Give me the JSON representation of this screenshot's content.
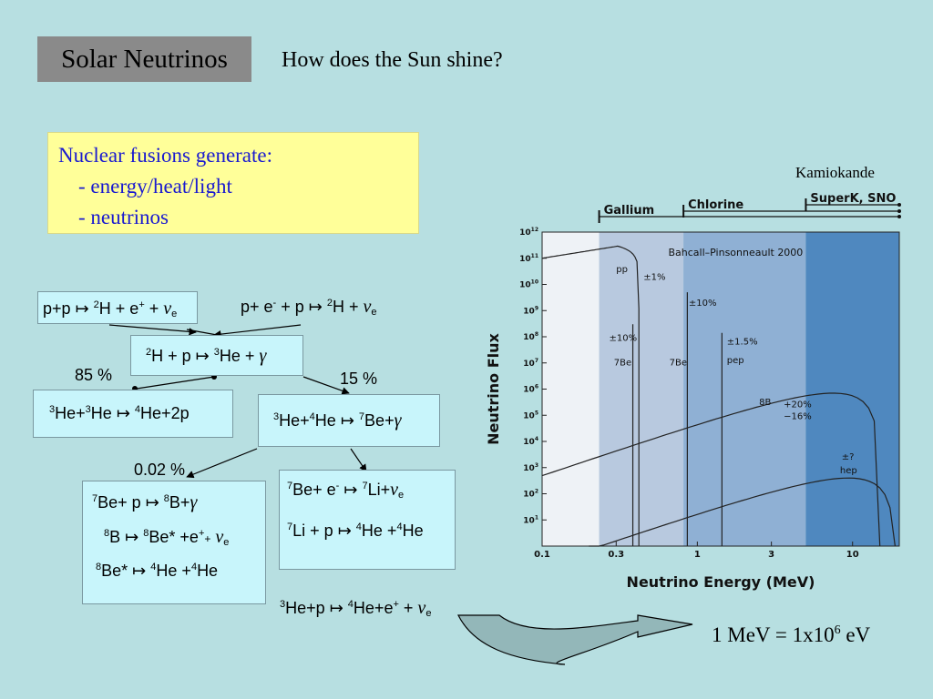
{
  "slide": {
    "title": "Solar Neutrinos",
    "subtitle": "How does the Sun shine?",
    "fusion_heading": "Nuclear fusions generate:",
    "fusion_items": [
      "- energy/heat/light",
      "- neutrinos"
    ],
    "energy_note_prefix": "1 MeV = 1x10",
    "energy_note_exp": "6",
    "energy_note_suffix": " eV"
  },
  "reactions": {
    "pp_a": "p+p",
    "pp_b": "H + e",
    "pep_a": "p+ e",
    "pep_b": " + p",
    "pep_c": "H +",
    "d_p_a": "H + p",
    "d_p_b": "He +",
    "he3he3_a": "He+",
    "he3he3_b": "He",
    "he3he3_c": "He+2p",
    "he3he4_a": "He+",
    "he3he4_b": "He",
    "he3he4_c": "Be+",
    "be7e_a": "Be+  e",
    "be7e_b": "Li+",
    "li7p_a": "Li + p",
    "li7p_b": "He +",
    "li7p_c": "He",
    "be7p_a": "Be+  p",
    "be7p_b": "B+",
    "b8_a": "B",
    "b8_b": "Be* +e",
    "be8_a": "Be*",
    "be8_b": "He +",
    "be8_c": "He",
    "hep_a": "He+p",
    "hep_b": "He+e",
    "branch_85": "85 %",
    "branch_15": "15 %",
    "branch_002": "0.02 %",
    "arrow_sym": "↦",
    "nu_sym": "ν",
    "gamma_sym": "γ",
    "e_sub": "e",
    "plus": "+",
    "minus": "-",
    "num_2": "2",
    "num_3": "3",
    "num_4": "4",
    "num_7": "7",
    "num_8": "8"
  },
  "chart_data": {
    "type": "line",
    "xlabel": "Neutrino Energy (MeV)",
    "ylabel": "Neutrino Flux",
    "x_scale": "log",
    "y_scale": "log",
    "xlim": [
      0.1,
      20
    ],
    "ylim": [
      1,
      1000000000000.0
    ],
    "x_ticks": [
      "0.1",
      "0.3",
      "1",
      "3",
      "10"
    ],
    "y_ticks": [
      "10^12",
      "10^11",
      "10^10",
      "10^9",
      "10^8",
      "10^7",
      "10^6",
      "10^5",
      "10^4",
      "10^3",
      "10^2",
      "10^1"
    ],
    "model_label": "Bahcall–Pinsonneault 2000",
    "detector_ranges": [
      {
        "name": "Gallium",
        "threshold_mev": 0.233
      },
      {
        "name": "Chlorine",
        "threshold_mev": 0.814
      },
      {
        "name": "SuperK, SNO",
        "threshold_mev": 5.0
      }
    ],
    "kamiokande_label": "Kamiokande",
    "series": [
      {
        "name": "pp",
        "uncertainty": "±1%",
        "type": "continuum",
        "endpoint_mev": 0.42,
        "peak_flux": 300000000000.0
      },
      {
        "name": "7Be",
        "uncertainty": "±10%",
        "type": "line",
        "energy_mev": 0.384,
        "flux": 300000000.0
      },
      {
        "name": "7Be",
        "uncertainty": "",
        "type": "line",
        "energy_mev": 0.862,
        "flux": 5000000000.0
      },
      {
        "name": "pep",
        "uncertainty": "±1.5%",
        "type": "line",
        "energy_mev": 1.44,
        "flux": 140000000.0
      },
      {
        "name": "8B",
        "uncertainty": "+20% −16%",
        "type": "continuum",
        "endpoint_mev": 15,
        "peak_flux": 700000.0
      },
      {
        "name": "hep",
        "uncertainty": "±?",
        "type": "continuum",
        "endpoint_mev": 18.8,
        "peak_flux": 400.0
      }
    ],
    "labels": {
      "pp": "pp",
      "pp_unc": "±1%",
      "be7a_unc": "±10%",
      "be7a": "7Be",
      "be7b": "7Be",
      "be7b_unc": "±10%",
      "pep_unc": "±1.5%",
      "pep": "pep",
      "b8_unc1": "+20%",
      "b8_unc2": "−16%",
      "b8": "8B",
      "hep_unc": "±?",
      "hep": "hep"
    },
    "colors": {
      "bg_region": "#eef2f6",
      "gallium_region": "#b8c9df",
      "chlorine_region": "#8fb0d4",
      "superk_region": "#4f88bf"
    }
  }
}
